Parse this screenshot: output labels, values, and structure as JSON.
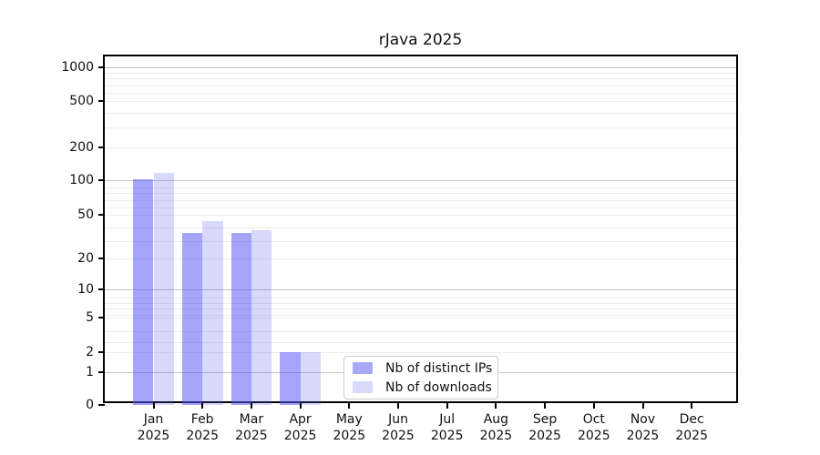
{
  "chart_data": {
    "type": "bar",
    "title": "rJava 2025",
    "categories": [
      "Jan",
      "Feb",
      "Mar",
      "Apr",
      "May",
      "Jun",
      "Jul",
      "Aug",
      "Sep",
      "Oct",
      "Nov",
      "Dec"
    ],
    "year_label": "2025",
    "series": [
      {
        "name": "Nb of distinct IPs",
        "color": "rgba(90,90,245,0.55)",
        "swatch": "#a9a9f8",
        "values": [
          102,
          34,
          34,
          2,
          0,
          0,
          0,
          0,
          0,
          0,
          0,
          0
        ]
      },
      {
        "name": "Nb of downloads",
        "color": "rgba(90,90,245,0.24)",
        "swatch": "#d9d9fc",
        "values": [
          117,
          44,
          36,
          2,
          0,
          0,
          0,
          0,
          0,
          0,
          0,
          0
        ]
      }
    ],
    "y_ticks": [
      0,
      1,
      2,
      5,
      10,
      20,
      50,
      100,
      200,
      500,
      1000
    ],
    "y_major_gridlines": [
      1,
      10,
      100,
      1000
    ],
    "yscale": "symlog",
    "ylim": [
      0,
      1400
    ],
    "grid": true,
    "legend_position": "bottom-center"
  },
  "legend": {
    "items": [
      {
        "label": "Nb of distinct IPs"
      },
      {
        "label": "Nb of downloads"
      }
    ]
  },
  "colors": {
    "bar_distinct_ips": "rgba(90,90,245,0.55)",
    "bar_downloads": "rgba(90,90,245,0.24)",
    "grid_major": "#c3c3c3",
    "grid_minor": "#ececec",
    "spine": "#000000",
    "background": "#ffffff"
  }
}
